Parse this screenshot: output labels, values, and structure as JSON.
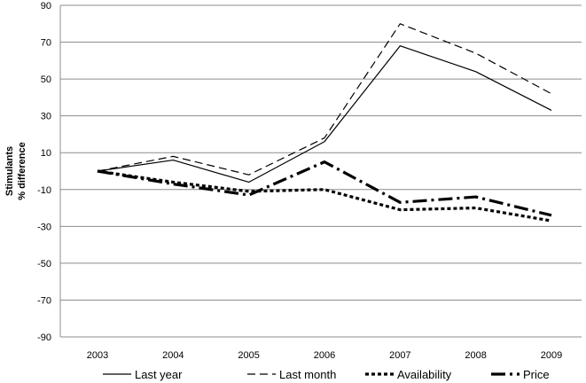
{
  "chart_data": {
    "type": "line",
    "categories": [
      "2003",
      "2004",
      "2005",
      "2006",
      "2007",
      "2008",
      "2009"
    ],
    "ylabel_lines": [
      "Stimulants",
      "% difference"
    ],
    "yticks": [
      90,
      70,
      50,
      30,
      10,
      -10,
      -30,
      -50,
      -70,
      -90
    ],
    "ylim": [
      -90,
      90
    ],
    "grid": "horizontal",
    "legend_position": "bottom",
    "series": [
      {
        "name": "Last year",
        "values": [
          0,
          6,
          -6,
          16,
          68,
          54,
          33
        ],
        "style": "solid",
        "width": 1.2,
        "color": "#000000"
      },
      {
        "name": "Last month",
        "values": [
          0,
          8,
          -2,
          18,
          80,
          64,
          42
        ],
        "style": "dashed",
        "width": 1.2,
        "color": "#000000"
      },
      {
        "name": "Availability",
        "values": [
          0,
          -6,
          -11,
          -10,
          -21,
          -20,
          -27
        ],
        "style": "dotted",
        "width": 3.2,
        "color": "#000000"
      },
      {
        "name": "Price",
        "values": [
          0,
          -7,
          -13,
          5,
          -17,
          -14,
          -24
        ],
        "style": "dashdot",
        "width": 3.2,
        "color": "#000000"
      }
    ]
  }
}
